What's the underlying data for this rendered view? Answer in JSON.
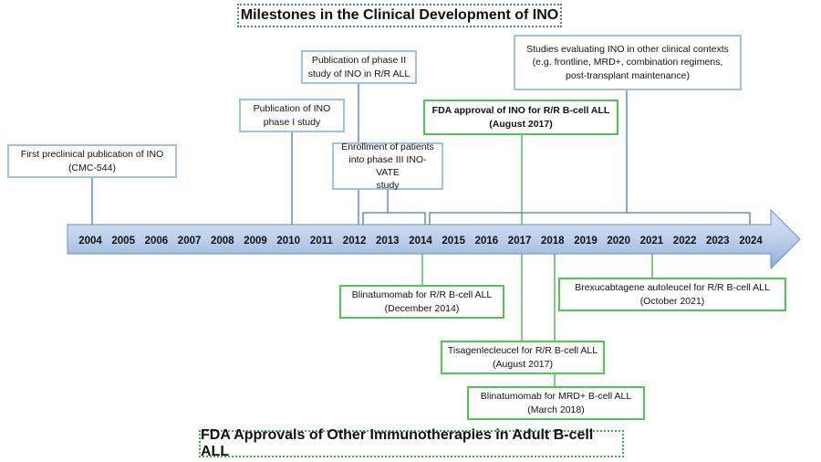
{
  "title": "Milestones in the Clinical Development of INO",
  "footer_title": "FDA Approvals of Other Immunotherapies in Adult B-cell ALL",
  "years": [
    "2004",
    "2005",
    "2006",
    "2007",
    "2008",
    "2009",
    "2010",
    "2011",
    "2012",
    "2013",
    "2014",
    "2015",
    "2016",
    "2017",
    "2018",
    "2019",
    "2020",
    "2021",
    "2022",
    "2023",
    "2024"
  ],
  "ino_milestones": [
    {
      "line1": "First preclinical publication of INO",
      "line2": "(CMC-544)"
    },
    {
      "line1": "Publication of INO",
      "line2": "phase I study"
    },
    {
      "line1": "Publication of phase II",
      "line2": "study of INO in R/R ALL"
    },
    {
      "line1": "Enrollment of patients",
      "line2": "into phase III INO-VATE",
      "line3": "study"
    },
    {
      "line1": "FDA approval of INO for R/R B-cell ALL",
      "line2": "(August 2017)"
    },
    {
      "line1": "Studies evaluating INO in other clinical contexts",
      "line2": "(e.g. frontline, MRD+, combination regimens,",
      "line3": "post-transplant maintenance)"
    }
  ],
  "other_approvals": [
    {
      "line1": "Blinatumomab for R/R B-cell ALL",
      "line2": "(December 2014)"
    },
    {
      "line1": "Brexucabtagene autoleucel for R/R B-cell ALL",
      "line2": "(October 2021)"
    },
    {
      "line1": "Tisagenlecleucel for R/R B-cell ALL",
      "line2": "(August 2017)"
    },
    {
      "line1": "Blinatumomab for MRD+ B-cell ALL",
      "line2": "(March 2018)"
    }
  ],
  "colors": {
    "blue_border": "#9cc3e6",
    "green_border": "#4cc94e",
    "connector_blue": "#4a7ab8",
    "connector_green": "#34b34a"
  }
}
